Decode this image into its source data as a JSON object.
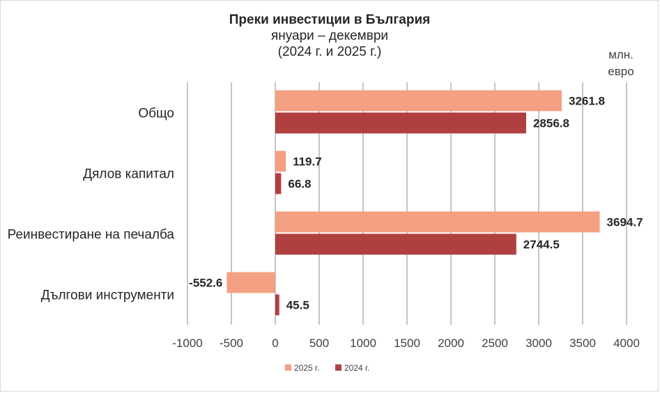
{
  "colors": {
    "series_2025": "#f4a083",
    "series_2024": "#b04040",
    "grid": "#a6a6a6"
  },
  "chart_data": {
    "type": "bar",
    "orientation": "horizontal",
    "title": "Преки инвестиции в България",
    "subtitle": "януари – декември",
    "period": "(2024 г. и 2025 г.)",
    "unit_line1": "млн.",
    "unit_line2": "евро",
    "categories": [
      "Общо",
      "Дялов капитал",
      "Реинвестиране на печалба",
      "Дългови инструменти"
    ],
    "series": [
      {
        "name": "2025 г.",
        "values": [
          3261.8,
          119.7,
          3694.7,
          -552.6
        ]
      },
      {
        "name": "2024 г.",
        "values": [
          2856.8,
          66.8,
          2744.5,
          45.5
        ]
      }
    ],
    "xlim": [
      -1000,
      4000
    ],
    "xticks": [
      -1000,
      -500,
      0,
      500,
      1000,
      1500,
      2000,
      2500,
      3000,
      3500,
      4000
    ],
    "grid": "vertical",
    "legend_position": "bottom"
  }
}
